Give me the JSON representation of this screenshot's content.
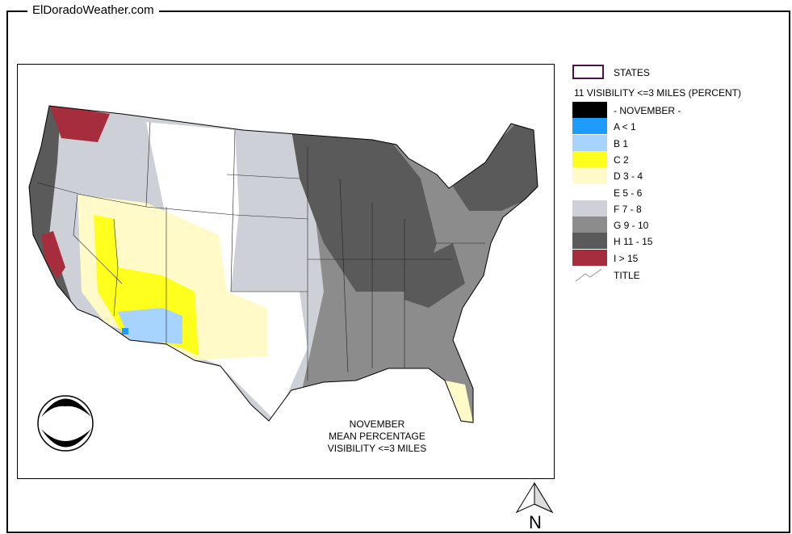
{
  "site_title": "ElDoradoWeather.com",
  "map": {
    "caption_lines": [
      "NOVEMBER",
      "MEAN PERCENTAGE",
      "VISIBILITY <=3 MILES"
    ],
    "logo_text": "NOAA",
    "north_label": "N"
  },
  "legend": {
    "states_label": "STATES",
    "heading": "11 VISIBILITY <=3 MILES (PERCENT)",
    "items": [
      {
        "label": "- NOVEMBER -",
        "color": "#000000"
      },
      {
        "label": "A < 1",
        "color": "#1e9bff"
      },
      {
        "label": "B 1",
        "color": "#a6d3ff"
      },
      {
        "label": "C 2",
        "color": "#ffff1e"
      },
      {
        "label": "D 3 - 4",
        "color": "#fffac8"
      },
      {
        "label": "E 5 - 6",
        "color": "#ffffff"
      },
      {
        "label": "F 7 - 8",
        "color": "#cdd0d6"
      },
      {
        "label": "G 9 - 10",
        "color": "#8c8c8c"
      },
      {
        "label": "H 11 - 15",
        "color": "#5a5a5a"
      },
      {
        "label": "I > 15",
        "color": "#a52d3c"
      }
    ],
    "title_label": "TITLE"
  }
}
